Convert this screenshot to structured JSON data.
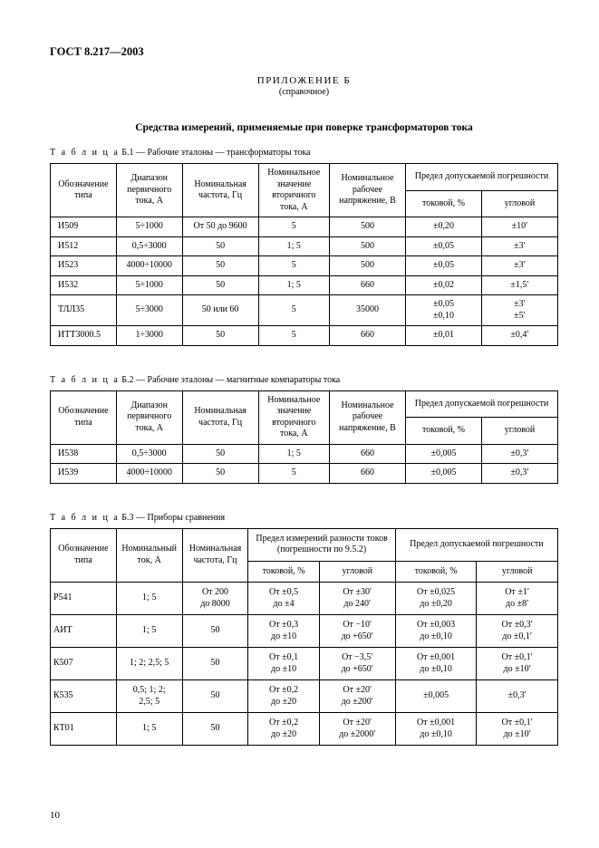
{
  "docHeader": "ГОСТ 8.217—2003",
  "appendixTitle": "ПРИЛОЖЕНИЕ Б",
  "appendixSub": "(справочное)",
  "sectionTitle": "Средства измерений, применяемые при поверке трансформаторов тока",
  "pageNumber": "10",
  "t1": {
    "caption_spaced": "Т а б л и ц а",
    "caption_rest": " Б.1 — Рабочие эталоны — трансформаторы тока",
    "h_type": "Обозначение типа",
    "h_range": "Диапазон первичного тока, А",
    "h_freq": "Номинальная частота, Гц",
    "h_sec": "Номинальное значение вторичного тока, А",
    "h_volt": "Номинальное рабочее напряжение, В",
    "h_err": "Предел допускаемой погрешности",
    "h_cur": "токовой, %",
    "h_ang": "угловой",
    "r0c0": "И509",
    "r0c1": "5÷1000",
    "r0c2": "От 50 до 9600",
    "r0c3": "5",
    "r0c4": "500",
    "r0c5": "±0,20",
    "r0c6": "±10′",
    "r1c0": "И512",
    "r1c1": "0,5÷3000",
    "r1c2": "50",
    "r1c3": "1; 5",
    "r1c4": "500",
    "r1c5": "±0,05",
    "r1c6": "±3′",
    "r2c0": "И523",
    "r2c1": "4000÷10000",
    "r2c2": "50",
    "r2c3": "5",
    "r2c4": "500",
    "r2c5": "±0,05",
    "r2c6": "±3′",
    "r3c0": "И532",
    "r3c1": "5÷1000",
    "r3c2": "50",
    "r3c3": "1; 5",
    "r3c4": "660",
    "r3c5": "±0,02",
    "r3c6": "±1,5′",
    "r4c0": "ТЛЛ35",
    "r4c1": "5÷3000",
    "r4c2": "50 или 60",
    "r4c3": "5",
    "r4c4": "35000",
    "r4c5": "±0,05\n±0,10",
    "r4c6": "±3′\n±5′",
    "r5c0": "ИТТ3000.5",
    "r5c1": "1÷3000",
    "r5c2": "50",
    "r5c3": "5",
    "r5c4": "660",
    "r5c5": "±0,01",
    "r5c6": "±0,4′"
  },
  "t2": {
    "caption_spaced": "Т а б л и ц а",
    "caption_rest": " Б.2 — Рабочие эталоны — магнитные компараторы тока",
    "h_type": "Обозначение типа",
    "h_range": "Диапазон первичного тока, А",
    "h_freq": "Номинальная частота, Гц",
    "h_sec": "Номинальное значение вторичного тока, А",
    "h_volt": "Номинальное рабочее напряжение, В",
    "h_err": "Предел допускаемой погрешности",
    "h_cur": "токовой, %",
    "h_ang": "угловой",
    "r0c0": "И538",
    "r0c1": "0,5÷3000",
    "r0c2": "50",
    "r0c3": "1; 5",
    "r0c4": "660",
    "r0c5": "±0,005",
    "r0c6": "±0,3′",
    "r1c0": "И539",
    "r1c1": "4000÷10000",
    "r1c2": "50",
    "r1c3": "5",
    "r1c4": "660",
    "r1c5": "±0,005",
    "r1c6": "±0,3′"
  },
  "t3": {
    "caption_spaced": "Т а б л и ц а",
    "caption_rest": " Б.3 — Приборы сравнения",
    "h_type": "Обозначение типа",
    "h_nom": "Номинальный ток, А",
    "h_freq": "Номинальная частота, Гц",
    "h_meas": "Предел измерений разности токов (погрешности по 9.5.2)",
    "h_err": "Предел допускаемой погрешности",
    "h_cur": "токовой, %",
    "h_ang": "угловой",
    "r0c0": "Р541",
    "r0c1": "1; 5",
    "r0c2": "От 200\nдо 8000",
    "r0c3": "От ±0,5\nдо ±4",
    "r0c4": "От ±30′\nдо 240′",
    "r0c5": "От ±0,025\nдо ±0,20",
    "r0c6": "От ±1′\nдо ±8′",
    "r1c0": "АИТ",
    "r1c1": "1; 5",
    "r1c2": "50",
    "r1c3": "От ±0,3\nдо ±10",
    "r1c4": "От −10′\nдо +650′",
    "r1c5": "От ±0,003\nдо ±0,10",
    "r1c6": "От ±0,3′\nдо ±0,1′",
    "r2c0": "К507",
    "r2c1": "1; 2; 2,5; 5",
    "r2c2": "50",
    "r2c3": "От ±0,1\nдо ±10",
    "r2c4": "От −3,5′\nдо +650′",
    "r2c5": "От ±0,001\nдо ±0,10",
    "r2c6": "От ±0,1′\nдо ±10′",
    "r3c0": "К535",
    "r3c1": "0,5; 1; 2;\n2,5; 5",
    "r3c2": "50",
    "r3c3": "От ±0,2\nдо ±20",
    "r3c4": "От ±20′\nдо ±200′",
    "r3c5": "±0,005",
    "r3c6": "±0,3′",
    "r4c0": "КТ01",
    "r4c1": "1; 5",
    "r4c2": "50",
    "r4c3": "От ±0,2\nдо ±20",
    "r4c4": "От ±20′\nдо ±2000′",
    "r4c5": "От ±0,001\nдо ±0,10",
    "r4c6": "От ±0,1′\nдо ±10′"
  }
}
